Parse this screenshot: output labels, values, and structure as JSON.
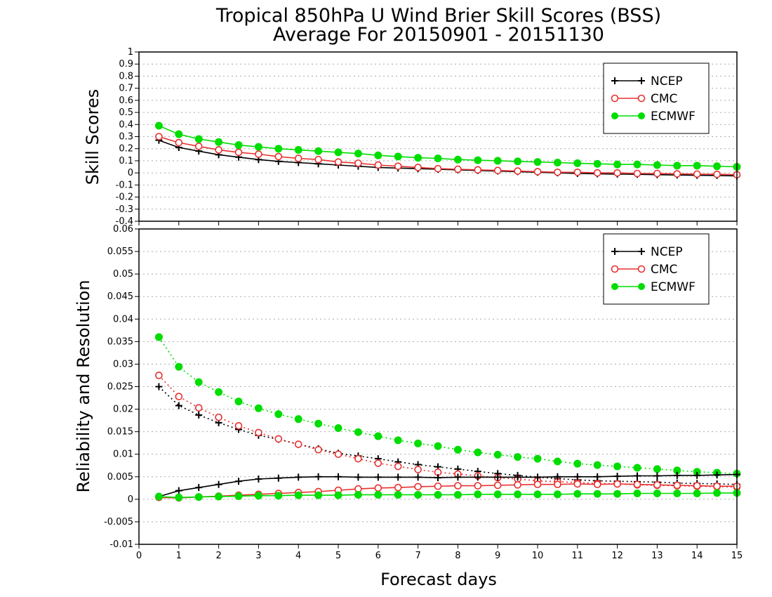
{
  "title_line1": "Tropical 850hPa U Wind Brier Skill Scores (BSS)",
  "title_line2": "Average For 20150901 - 20151130",
  "xlabel": "Forecast days",
  "colors": {
    "NCEP": "#000000",
    "CMC": "#e83030",
    "ECMWF": "#00dd00"
  },
  "chart_data": [
    {
      "type": "line",
      "ylabel": "Skill Scores",
      "xlim": [
        0,
        15
      ],
      "ylim": [
        -0.4,
        1
      ],
      "x_ticks": [
        0,
        1,
        2,
        3,
        4,
        5,
        6,
        7,
        8,
        9,
        10,
        11,
        12,
        13,
        14,
        15
      ],
      "y_ticks": [
        "-0.4",
        "-0.3",
        "-0.2",
        "-0.1",
        "0",
        "0.1",
        "0.2",
        "0.3",
        "0.4",
        "0.5",
        "0.6",
        "0.7",
        "0.8",
        "0.9",
        "1"
      ],
      "grid": true,
      "legend_position": "top-right",
      "legend": [
        "NCEP",
        "CMC",
        "ECMWF"
      ],
      "x": [
        0.5,
        1,
        1.5,
        2,
        2.5,
        3,
        3.5,
        4,
        4.5,
        5,
        5.5,
        6,
        6.5,
        7,
        7.5,
        8,
        8.5,
        9,
        9.5,
        10,
        10.5,
        11,
        11.5,
        12,
        12.5,
        13,
        13.5,
        14,
        14.5,
        15
      ],
      "series": [
        {
          "name": "NCEP",
          "marker": "plus",
          "line": "solid",
          "values": [
            0.27,
            0.21,
            0.18,
            0.15,
            0.13,
            0.11,
            0.095,
            0.085,
            0.075,
            0.065,
            0.055,
            0.045,
            0.04,
            0.035,
            0.03,
            0.025,
            0.02,
            0.015,
            0.01,
            0.005,
            0.0,
            -0.005,
            -0.008,
            -0.01,
            -0.012,
            -0.015,
            -0.018,
            -0.02,
            -0.022,
            -0.025
          ]
        },
        {
          "name": "CMC",
          "marker": "open-circle",
          "line": "solid",
          "values": [
            0.3,
            0.25,
            0.22,
            0.19,
            0.17,
            0.155,
            0.135,
            0.12,
            0.11,
            0.09,
            0.08,
            0.065,
            0.055,
            0.045,
            0.035,
            0.03,
            0.025,
            0.02,
            0.015,
            0.01,
            0.005,
            0.005,
            0.0,
            0.0,
            -0.005,
            -0.005,
            -0.008,
            -0.01,
            -0.012,
            -0.015
          ]
        },
        {
          "name": "ECMWF",
          "marker": "filled-circle",
          "line": "solid",
          "values": [
            0.39,
            0.32,
            0.28,
            0.255,
            0.23,
            0.215,
            0.2,
            0.19,
            0.18,
            0.17,
            0.16,
            0.145,
            0.135,
            0.125,
            0.12,
            0.11,
            0.105,
            0.1,
            0.095,
            0.09,
            0.085,
            0.08,
            0.075,
            0.07,
            0.07,
            0.065,
            0.06,
            0.06,
            0.055,
            0.05
          ]
        }
      ]
    },
    {
      "type": "line",
      "ylabel": "Reliability and Resolution",
      "xlim": [
        0,
        15
      ],
      "ylim": [
        -0.01,
        0.06
      ],
      "x_ticks": [
        0,
        1,
        2,
        3,
        4,
        5,
        6,
        7,
        8,
        9,
        10,
        11,
        12,
        13,
        14,
        15
      ],
      "y_ticks": [
        "-0.01",
        "-0.005",
        "0",
        "0.005",
        "0.01",
        "0.015",
        "0.02",
        "0.025",
        "0.03",
        "0.035",
        "0.04",
        "0.045",
        "0.05",
        "0.055",
        "0.06"
      ],
      "grid": true,
      "legend_position": "top-right",
      "legend": [
        "NCEP",
        "CMC",
        "ECMWF"
      ],
      "x": [
        0.5,
        1,
        1.5,
        2,
        2.5,
        3,
        3.5,
        4,
        4.5,
        5,
        5.5,
        6,
        6.5,
        7,
        7.5,
        8,
        8.5,
        9,
        9.5,
        10,
        10.5,
        11,
        11.5,
        12,
        12.5,
        13,
        13.5,
        14,
        14.5,
        15
      ],
      "series": [
        {
          "name": "NCEP",
          "kind": "resolution",
          "marker": "plus",
          "line": "dotted",
          "values": [
            0.025,
            0.0208,
            0.0187,
            0.017,
            0.0155,
            0.0142,
            0.0133,
            0.0122,
            0.0112,
            0.0102,
            0.0096,
            0.009,
            0.0083,
            0.0077,
            0.0072,
            0.0067,
            0.0062,
            0.0057,
            0.0053,
            0.0049,
            0.0046,
            0.0043,
            0.0041,
            0.004,
            0.0039,
            0.0038,
            0.0036,
            0.0035,
            0.0034,
            0.0033
          ]
        },
        {
          "name": "CMC",
          "kind": "resolution",
          "marker": "open-circle",
          "line": "dotted",
          "values": [
            0.0275,
            0.0228,
            0.0203,
            0.0182,
            0.0163,
            0.0148,
            0.0134,
            0.0122,
            0.011,
            0.01,
            0.009,
            0.008,
            0.0073,
            0.0066,
            0.006,
            0.0056,
            0.0052,
            0.0048,
            0.0045,
            0.0041,
            0.0039,
            0.0037,
            0.0035,
            0.0034,
            0.0032,
            0.0031,
            0.003,
            0.0029,
            0.0028,
            0.0027
          ]
        },
        {
          "name": "ECMWF",
          "kind": "resolution",
          "marker": "filled-circle",
          "line": "dotted",
          "values": [
            0.036,
            0.0294,
            0.026,
            0.0238,
            0.0217,
            0.0202,
            0.0189,
            0.0178,
            0.0168,
            0.0158,
            0.0149,
            0.014,
            0.0131,
            0.0124,
            0.0118,
            0.011,
            0.0104,
            0.0099,
            0.0094,
            0.009,
            0.0084,
            0.0079,
            0.0076,
            0.0073,
            0.007,
            0.0067,
            0.0064,
            0.0061,
            0.0059,
            0.0057
          ]
        },
        {
          "name": "NCEP",
          "kind": "reliability",
          "marker": "plus",
          "line": "solid",
          "values": [
            0.0006,
            0.0019,
            0.0026,
            0.0033,
            0.004,
            0.0045,
            0.0047,
            0.0049,
            0.005,
            0.005,
            0.0049,
            0.0049,
            0.0049,
            0.0049,
            0.0048,
            0.0049,
            0.0049,
            0.0049,
            0.0049,
            0.0049,
            0.005,
            0.005,
            0.005,
            0.0051,
            0.0052,
            0.0052,
            0.0053,
            0.0053,
            0.0054,
            0.0055
          ]
        },
        {
          "name": "CMC",
          "kind": "reliability",
          "marker": "open-circle",
          "line": "solid",
          "values": [
            0.0004,
            0.0003,
            0.0005,
            0.0007,
            0.0009,
            0.0011,
            0.0013,
            0.0015,
            0.0017,
            0.002,
            0.0023,
            0.0025,
            0.0026,
            0.0028,
            0.0029,
            0.003,
            0.003,
            0.0031,
            0.0032,
            0.0033,
            0.0033,
            0.0034,
            0.0033,
            0.0034,
            0.0033,
            0.0032,
            0.0031,
            0.003,
            0.0029,
            0.0029
          ]
        },
        {
          "name": "ECMWF",
          "kind": "reliability",
          "marker": "filled-circle",
          "line": "solid",
          "values": [
            0.0006,
            0.0004,
            0.0005,
            0.0006,
            0.0007,
            0.0008,
            0.0008,
            0.0009,
            0.0009,
            0.0009,
            0.001,
            0.001,
            0.001,
            0.001,
            0.001,
            0.001,
            0.0011,
            0.0011,
            0.0011,
            0.0011,
            0.0011,
            0.0012,
            0.0012,
            0.0012,
            0.0013,
            0.0013,
            0.0013,
            0.0013,
            0.0014,
            0.0014
          ]
        }
      ]
    }
  ]
}
